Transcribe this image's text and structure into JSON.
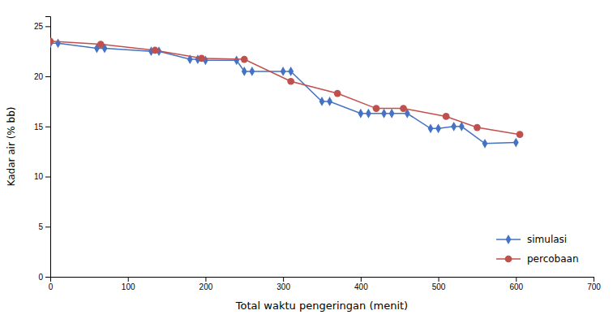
{
  "chart_data": {
    "type": "line",
    "xlabel": "Total waktu pengeringan (menit)",
    "ylabel": "Kadar air (% bb)",
    "series": [
      {
        "name": "simulasi",
        "color": "#4472c4",
        "marker": "diamond",
        "line_style": "solid",
        "x": [
          0,
          10,
          60,
          70,
          130,
          140,
          180,
          190,
          200,
          240,
          250,
          260,
          300,
          310,
          350,
          360,
          400,
          410,
          430,
          440,
          460,
          490,
          500,
          520,
          530,
          560,
          600
        ],
        "values": [
          23.3,
          23.3,
          22.8,
          22.8,
          22.5,
          22.5,
          21.7,
          21.7,
          21.6,
          21.6,
          20.5,
          20.5,
          20.5,
          20.5,
          17.5,
          17.5,
          16.3,
          16.3,
          16.3,
          16.3,
          16.3,
          14.8,
          14.8,
          15.0,
          15.0,
          13.3,
          13.4
        ]
      },
      {
        "name": "percobaan",
        "color": "#c0504d",
        "marker": "circle",
        "line_style": "solid",
        "x": [
          0,
          65,
          135,
          195,
          250,
          310,
          370,
          420,
          455,
          510,
          550,
          605
        ],
        "values": [
          23.5,
          23.2,
          22.6,
          21.8,
          21.7,
          19.5,
          18.3,
          16.8,
          16.8,
          16.0,
          14.9,
          14.2
        ]
      }
    ],
    "xlim": [
      0,
      700
    ],
    "ylim": [
      0,
      26
    ],
    "xticks": [
      0,
      100,
      200,
      300,
      400,
      500,
      600,
      700
    ],
    "yticks": [
      0,
      5,
      10,
      15,
      20,
      25
    ],
    "grid": false,
    "legend": "lower right"
  }
}
